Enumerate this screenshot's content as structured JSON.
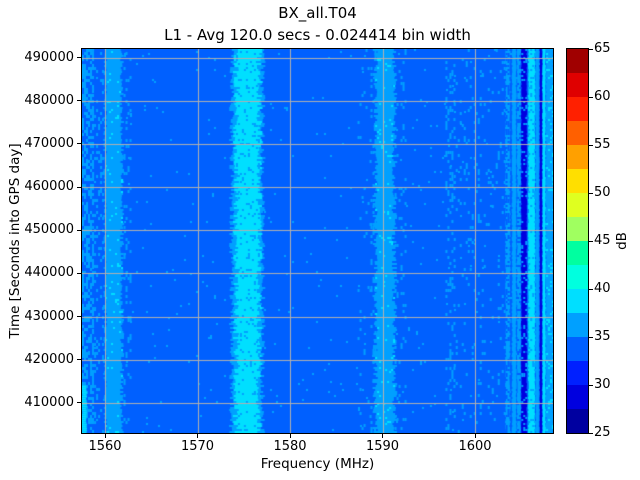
{
  "chart_data": {
    "type": "heatmap",
    "title": "BX_all.T04",
    "subtitle": "L1 - Avg 120.0 secs - 0.024414 bin width",
    "xlabel": "Frequency (MHz)",
    "ylabel": "Time [Seconds into GPS day]",
    "avg_secs": 120.0,
    "bin_width_mhz": 0.024414,
    "x_range": [
      1557.51,
      1608.43
    ],
    "y_range": [
      403000,
      492000
    ],
    "x_ticks": [
      1560,
      1570,
      1580,
      1590,
      1600
    ],
    "y_ticks": [
      410000,
      420000,
      430000,
      440000,
      450000,
      460000,
      470000,
      480000,
      490000
    ],
    "grid": true,
    "grid_color": "#b0b0b0",
    "colorbar": {
      "label": "dB",
      "min": 25,
      "max": 65,
      "step": 2.5,
      "ticks": [
        25,
        30,
        35,
        40,
        45,
        50,
        55,
        60,
        65
      ],
      "palette": [
        "#0000a0",
        "#0000df",
        "#0020ff",
        "#0060ff",
        "#00a0ff",
        "#00dfff",
        "#00ffdf",
        "#00ffa0",
        "#a0ff60",
        "#dfff20",
        "#ffdf00",
        "#ffa000",
        "#ff6000",
        "#ff2000",
        "#df0000",
        "#a00000"
      ]
    },
    "noise_floor_db": 33.5,
    "base_speckle": {
      "db": 36,
      "density": 0.01
    },
    "bands": [
      {
        "name": "band-1560",
        "f0": 1560.0,
        "f1": 1561.85,
        "db": 36,
        "jitter": 0.22,
        "speckle": {
          "db": 38.5,
          "density": 0.035
        }
      },
      {
        "name": "band-1575-outer",
        "f0": 1573.7,
        "f1": 1577.05,
        "db": 36,
        "jitter": 0.3
      },
      {
        "name": "band-1575-core",
        "f0": 1574.15,
        "f1": 1576.7,
        "db": 38.5,
        "jitter": 0.33,
        "speckle": {
          "db": 36,
          "density": 0.1
        }
      },
      {
        "name": "band-1590",
        "f0": 1589.2,
        "f1": 1591.3,
        "db": 36,
        "jitter": 0.3,
        "speckle": {
          "db": 38.5,
          "density": 0.05
        }
      }
    ],
    "speckle_zones": [
      {
        "f0": 1557.51,
        "f1": 1558.6,
        "db": 36,
        "density": 0.5
      },
      {
        "f0": 1558.6,
        "f1": 1559.8,
        "db": 36,
        "density": 0.18
      },
      {
        "f0": 1562.0,
        "f1": 1562.8,
        "db": 36,
        "density": 0.12
      },
      {
        "f0": 1587.3,
        "f1": 1588.6,
        "db": 36,
        "density": 0.04
      },
      {
        "f0": 1588.7,
        "f1": 1589.2,
        "db": 36,
        "density": 0.15
      },
      {
        "f0": 1591.3,
        "f1": 1592.4,
        "db": 36,
        "density": 0.12
      },
      {
        "f0": 1596.8,
        "f1": 1597.7,
        "db": 36,
        "density": 0.2
      },
      {
        "f0": 1597.7,
        "f1": 1603.2,
        "db": 36,
        "density": 0.06
      }
    ],
    "stripes": [
      {
        "f0": 1603.3,
        "f1": 1603.8,
        "db": 36,
        "jitter": 0.06,
        "speckle": {
          "db": 33.5,
          "density": 0.35
        }
      },
      {
        "f0": 1604.0,
        "f1": 1604.45,
        "db": 36,
        "jitter": 0.05
      },
      {
        "f0": 1604.55,
        "f1": 1604.95,
        "db": 36,
        "jitter": 0.05,
        "speckle": {
          "db": 33.5,
          "density": 0.2
        }
      },
      {
        "f0": 1605.0,
        "f1": 1605.6,
        "db": 29.5,
        "jitter": 0.04,
        "speckle": {
          "db": 36,
          "density": 0.15
        }
      },
      {
        "f0": 1605.75,
        "f1": 1606.5,
        "db": 38.5,
        "jitter": 0.06,
        "speckle": {
          "db": 36,
          "density": 0.12
        }
      },
      {
        "f0": 1606.55,
        "f1": 1606.95,
        "db": 36,
        "jitter": 0.05
      },
      {
        "f0": 1607.0,
        "f1": 1607.25,
        "db": 29.5,
        "jitter": 0.03
      },
      {
        "f0": 1607.3,
        "f1": 1607.62,
        "db": 38.5,
        "jitter": 0.04
      },
      {
        "f0": 1607.68,
        "f1": 1608.43,
        "db": 36,
        "jitter": 0.04,
        "speckle": {
          "db": 38.5,
          "density": 0.15
        }
      }
    ],
    "partial_stripes": [
      {
        "name": "left-edge-cyan",
        "f0": 1557.51,
        "f1": 1558.0,
        "db": 38.5,
        "jitter": 0.06,
        "t0": 403000,
        "t1": 414000
      }
    ]
  }
}
